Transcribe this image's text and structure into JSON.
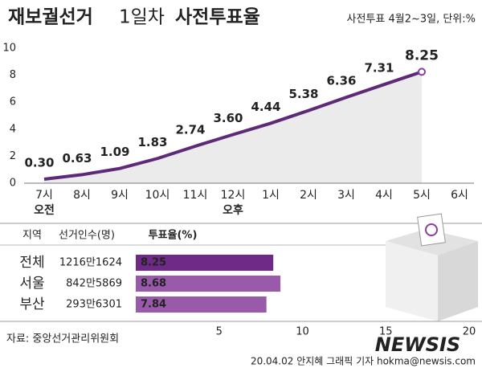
{
  "chart_data": [
    {
      "type": "line",
      "title_parts": [
        "재보궐선거",
        "1일차",
        "사전투표율"
      ],
      "subtitle": "사전투표 4월2~3일, 단위:%",
      "categories": [
        "7시",
        "8시",
        "9시",
        "10시",
        "11시",
        "12시",
        "1시",
        "2시",
        "3시",
        "4시",
        "5시",
        "6시"
      ],
      "period_labels": [
        "오전",
        null,
        null,
        null,
        null,
        "오후",
        null,
        null,
        null,
        null,
        null,
        null
      ],
      "values": [
        0.3,
        0.63,
        1.09,
        1.83,
        2.74,
        3.6,
        4.44,
        5.38,
        6.36,
        7.31,
        8.25,
        null
      ],
      "value_labels": [
        "0.30",
        "0.63",
        "1.09",
        "1.83",
        "2.74",
        "3.60",
        "4.44",
        "5.38",
        "6.36",
        "7.31",
        "8.25",
        null
      ],
      "color": "#5e2a78",
      "highlight_color": "#8a3d9e",
      "area_color": "#ebebeb",
      "ylim": [
        0,
        10
      ],
      "yticks": [
        0,
        2,
        4,
        6,
        8,
        10
      ]
    },
    {
      "type": "hbar",
      "column_headers": [
        "지역",
        "선거인수(명)",
        "투표율(%)"
      ],
      "categories": [
        "전체",
        "서울",
        "부산"
      ],
      "voters": [
        "1216만1624",
        "842만5869",
        "293만6301"
      ],
      "values": [
        8.25,
        8.68,
        7.84
      ],
      "colors": [
        "#6e2a86",
        "#9a5aaa",
        "#9a5aaa"
      ],
      "xlim": [
        0,
        20
      ],
      "xticks": [
        5,
        10,
        15,
        20
      ]
    }
  ],
  "source": "자료: 중앙선거관리위원회",
  "credit": "20.04.02 안지혜 그래픽 기자 hokma@newsis.com",
  "watermark": "NEWSIS"
}
